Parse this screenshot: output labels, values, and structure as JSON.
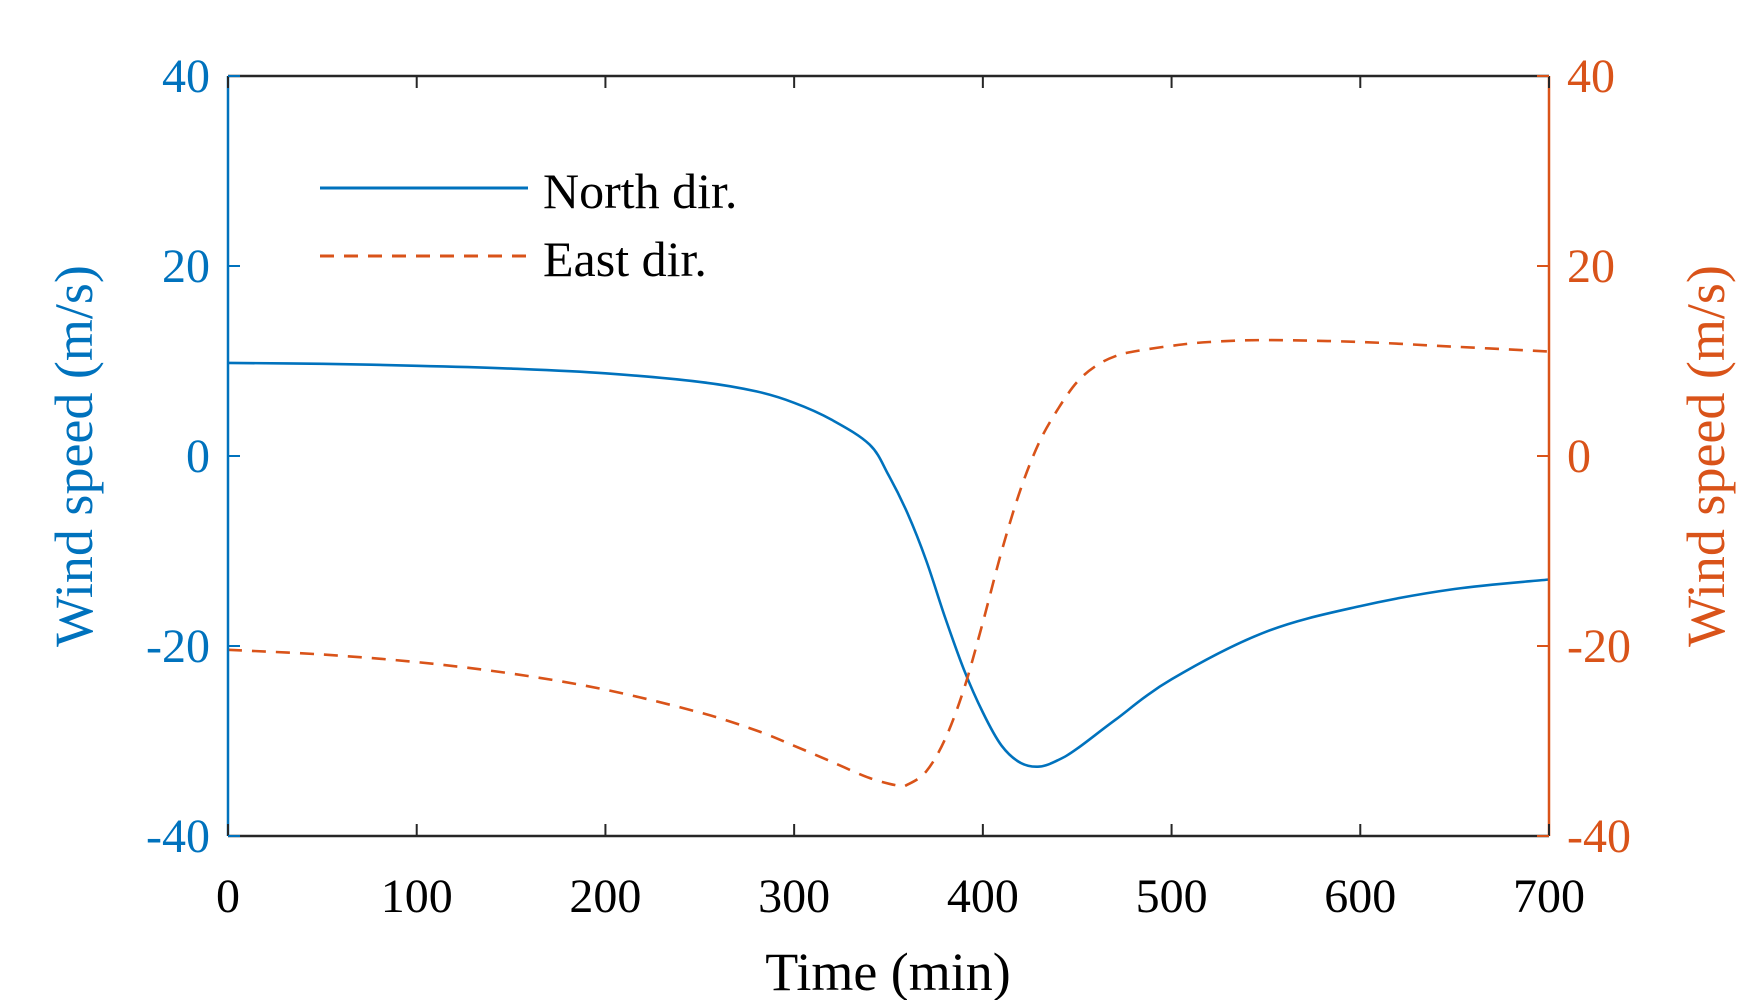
{
  "chart_data": {
    "type": "line",
    "xlabel": "Time (min)",
    "ylabel_left": "Wind speed (m/s)",
    "ylabel_right": "Wind speed (m/s)",
    "xlim": [
      0,
      700
    ],
    "ylim_left": [
      -40,
      40
    ],
    "ylim_right": [
      -40,
      40
    ],
    "x_ticks": [
      "0",
      "100",
      "200",
      "300",
      "400",
      "500",
      "600",
      "700"
    ],
    "y_ticks_left": [
      "40",
      "20",
      "0",
      "-20",
      "-40"
    ],
    "y_ticks_right": [
      "40",
      "20",
      "0",
      "-20",
      "-40"
    ],
    "grid": false,
    "legend_position": "top-left",
    "colors": {
      "left_axis": "#0072BD",
      "right_axis": "#D95319"
    },
    "series": [
      {
        "name": "North dir.",
        "axis": "left",
        "style": "solid",
        "color": "#0072BD",
        "x": [
          0,
          50,
          100,
          150,
          200,
          250,
          280,
          300,
          320,
          340,
          350,
          360,
          370,
          380,
          390,
          400,
          410,
          420,
          430,
          440,
          450,
          470,
          500,
          550,
          600,
          650,
          700
        ],
        "y": [
          9.8,
          9.7,
          9.5,
          9.2,
          8.7,
          7.8,
          6.8,
          5.6,
          3.8,
          1.2,
          -2.0,
          -6.0,
          -11.0,
          -17.0,
          -22.5,
          -27.0,
          -30.5,
          -32.3,
          -32.7,
          -32.0,
          -30.8,
          -27.8,
          -23.5,
          -18.5,
          -15.8,
          -14.0,
          -13.0
        ]
      },
      {
        "name": "East dir.",
        "axis": "right",
        "style": "dashed",
        "color": "#D95319",
        "x": [
          0,
          50,
          100,
          150,
          200,
          250,
          280,
          300,
          320,
          340,
          355,
          360,
          370,
          380,
          390,
          400,
          410,
          420,
          430,
          440,
          450,
          460,
          470,
          480,
          500,
          520,
          550,
          600,
          650,
          700
        ],
        "y": [
          -20.4,
          -20.9,
          -21.7,
          -22.9,
          -24.6,
          -27.0,
          -28.9,
          -30.5,
          -32.2,
          -33.9,
          -34.7,
          -34.6,
          -33.2,
          -29.8,
          -24.5,
          -17.5,
          -10.0,
          -3.5,
          1.5,
          5.0,
          7.8,
          9.5,
          10.5,
          11.0,
          11.6,
          12.0,
          12.2,
          12.0,
          11.5,
          11.0
        ]
      }
    ]
  }
}
